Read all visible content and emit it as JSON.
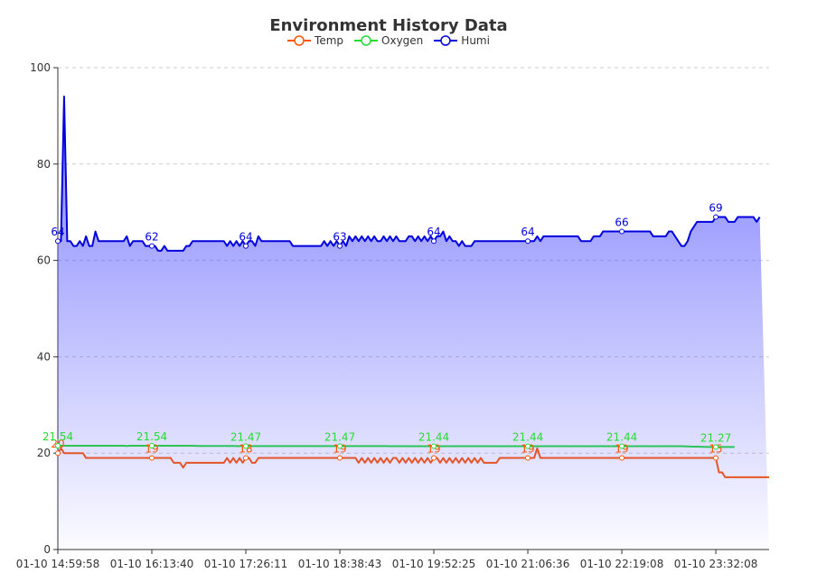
{
  "chart_data": {
    "type": "line",
    "title": "Environment History Data",
    "legend_position": "top",
    "grid": "dashed-horizontal",
    "ylim": [
      0,
      100
    ],
    "yticks": [
      0,
      20,
      40,
      60,
      80,
      100
    ],
    "x_tick_labels": [
      "01-10 14:59:58",
      "01-10 16:13:40",
      "01-10 17:26:11",
      "01-10 18:38:43",
      "01-10 19:52:25",
      "01-10 21:06:36",
      "01-10 22:19:08",
      "01-10 23:32:08"
    ],
    "series": [
      {
        "name": "Temp",
        "color": "#ff5500",
        "area": false,
        "values": [
          20,
          21,
          20,
          20,
          20,
          20,
          20,
          20,
          20,
          19,
          19,
          19,
          19,
          19,
          19,
          19,
          19,
          19,
          19,
          19,
          19,
          19,
          19,
          19,
          19,
          19,
          19,
          19,
          19,
          19,
          19,
          19,
          19,
          19,
          19,
          19,
          19,
          18,
          18,
          18,
          17,
          18,
          18,
          18,
          18,
          18,
          18,
          18,
          18,
          18,
          18,
          18,
          18,
          18,
          19,
          18,
          19,
          18,
          19,
          18,
          19,
          19,
          18,
          18,
          19,
          19,
          19,
          19,
          19,
          19,
          19,
          19,
          19,
          19,
          19,
          19,
          19,
          19,
          19,
          19,
          19,
          19,
          19,
          19,
          19,
          19,
          19,
          19,
          19,
          19,
          19,
          19,
          19,
          19,
          19,
          19,
          18,
          19,
          18,
          19,
          18,
          19,
          18,
          19,
          18,
          19,
          18,
          19,
          19,
          18,
          19,
          18,
          19,
          18,
          19,
          18,
          19,
          18,
          19,
          18,
          19,
          19,
          18,
          19,
          18,
          19,
          18,
          19,
          18,
          19,
          18,
          19,
          18,
          19,
          18,
          19,
          18,
          18,
          18,
          18,
          18,
          19,
          19,
          19,
          19,
          19,
          19,
          19,
          19,
          19,
          19,
          19,
          19,
          21,
          19,
          19,
          19,
          19,
          19,
          19,
          19,
          19,
          19,
          19,
          19,
          19,
          19,
          19,
          19,
          19,
          19,
          19,
          19,
          19,
          19,
          19,
          19,
          19,
          19,
          19,
          19,
          19,
          19,
          19,
          19,
          19,
          19,
          19,
          19,
          19,
          19,
          19,
          19,
          19,
          19,
          19,
          19,
          19,
          19,
          19,
          19,
          19,
          19,
          19,
          19,
          19,
          19,
          19,
          19,
          19,
          19,
          16,
          16,
          15,
          15,
          15,
          15,
          15,
          15,
          15,
          15,
          15,
          15,
          15,
          15,
          15,
          15,
          15
        ],
        "labels": [
          [
            0,
            "20"
          ],
          [
            30,
            "19"
          ],
          [
            60,
            "18"
          ],
          [
            90,
            "19"
          ],
          [
            120,
            "19"
          ],
          [
            150,
            "19"
          ],
          [
            180,
            "19"
          ],
          [
            210,
            "15"
          ]
        ]
      },
      {
        "name": "Oxygen",
        "color": "#22dd33",
        "area": false,
        "values": [
          21.54,
          21.54,
          21.54,
          21.54,
          21.54,
          21.54,
          21.54,
          21.54,
          21.54,
          21.54,
          21.54,
          21.54,
          21.54,
          21.54,
          21.54,
          21.54,
          21.54,
          21.54,
          21.54,
          21.54,
          21.54,
          21.54,
          21.5,
          21.54,
          21.54,
          21.54,
          21.54,
          21.54,
          21.54,
          21.54,
          21.54,
          21.54,
          21.54,
          21.54,
          21.54,
          21.54,
          21.54,
          21.54,
          21.54,
          21.54,
          21.54,
          21.54,
          21.54,
          21.54,
          21.52,
          21.5,
          21.5,
          21.5,
          21.5,
          21.5,
          21.5,
          21.5,
          21.5,
          21.48,
          21.48,
          21.48,
          21.48,
          21.47,
          21.47,
          21.47,
          21.47,
          21.47,
          21.47,
          21.47,
          21.47,
          21.47,
          21.47,
          21.47,
          21.47,
          21.47,
          21.47,
          21.47,
          21.47,
          21.47,
          21.47,
          21.47,
          21.47,
          21.47,
          21.47,
          21.47,
          21.47,
          21.47,
          21.47,
          21.47,
          21.47,
          21.47,
          21.47,
          21.47,
          21.47,
          21.47,
          21.47,
          21.47,
          21.47,
          21.47,
          21.47,
          21.47,
          21.47,
          21.47,
          21.47,
          21.47,
          21.47,
          21.46,
          21.46,
          21.46,
          21.46,
          21.46,
          21.45,
          21.45,
          21.45,
          21.45,
          21.44,
          21.44,
          21.44,
          21.44,
          21.44,
          21.44,
          21.44,
          21.44,
          21.44,
          21.44,
          21.44,
          21.44,
          21.44,
          21.44,
          21.44,
          21.44,
          21.44,
          21.44,
          21.44,
          21.44,
          21.44,
          21.44,
          21.44,
          21.44,
          21.44,
          21.44,
          21.44,
          21.44,
          21.44,
          21.44,
          21.44,
          21.44,
          21.44,
          21.44,
          21.44,
          21.44,
          21.44,
          21.44,
          21.44,
          21.44,
          21.44,
          21.44,
          21.44,
          21.44,
          21.44,
          21.44,
          21.44,
          21.44,
          21.44,
          21.44,
          21.44,
          21.44,
          21.44,
          21.44,
          21.44,
          21.44,
          21.44,
          21.44,
          21.44,
          21.44,
          21.44,
          21.44,
          21.44,
          21.44,
          21.44,
          21.44,
          21.44,
          21.44,
          21.44,
          21.44,
          21.44,
          21.44,
          21.44,
          21.44,
          21.44,
          21.44,
          21.44,
          21.44,
          21.44,
          21.44,
          21.44,
          21.44,
          21.44,
          21.44,
          21.44,
          21.44,
          21.44,
          21.44,
          21.44,
          21.44,
          21.42,
          21.4,
          21.38,
          21.36,
          21.34,
          21.32,
          21.3,
          21.29,
          21.28,
          21.28,
          21.27,
          21.27,
          21.27,
          21.27,
          21.27,
          21.27,
          21.27
        ],
        "labels": [
          [
            0,
            "21.54"
          ],
          [
            30,
            "21.54"
          ],
          [
            60,
            "21.47"
          ],
          [
            90,
            "21.47"
          ],
          [
            120,
            "21.44"
          ],
          [
            150,
            "21.44"
          ],
          [
            180,
            "21.44"
          ],
          [
            210,
            "21.27"
          ]
        ]
      },
      {
        "name": "Humi",
        "color": "#0000dd",
        "area": true,
        "values": [
          64,
          64,
          94,
          64,
          64,
          63,
          63,
          64,
          63,
          65,
          63,
          63,
          66,
          64,
          64,
          64,
          64,
          64,
          64,
          64,
          64,
          64,
          65,
          63,
          64,
          64,
          64,
          64,
          63,
          63,
          63,
          63,
          62,
          62,
          63,
          62,
          62,
          62,
          62,
          62,
          62,
          63,
          63,
          64,
          64,
          64,
          64,
          64,
          64,
          64,
          64,
          64,
          64,
          64,
          63,
          64,
          63,
          64,
          63,
          64,
          63,
          64,
          64,
          63,
          65,
          64,
          64,
          64,
          64,
          64,
          64,
          64,
          64,
          64,
          64,
          63,
          63,
          63,
          63,
          63,
          63,
          63,
          63,
          63,
          63,
          64,
          63,
          64,
          63,
          64,
          63,
          64,
          63,
          65,
          64,
          65,
          64,
          65,
          64,
          65,
          64,
          65,
          64,
          64,
          65,
          64,
          65,
          64,
          65,
          64,
          64,
          64,
          65,
          65,
          64,
          65,
          64,
          65,
          64,
          65,
          64,
          65,
          65,
          66,
          64,
          65,
          64,
          64,
          63,
          64,
          63,
          63,
          63,
          64,
          64,
          64,
          64,
          64,
          64,
          64,
          64,
          64,
          64,
          64,
          64,
          64,
          64,
          64,
          64,
          64,
          64,
          64,
          64,
          65,
          64,
          65,
          65,
          65,
          65,
          65,
          65,
          65,
          65,
          65,
          65,
          65,
          65,
          64,
          64,
          64,
          64,
          65,
          65,
          65,
          66,
          66,
          66,
          66,
          66,
          66,
          66,
          66,
          66,
          66,
          66,
          66,
          66,
          66,
          66,
          66,
          65,
          65,
          65,
          65,
          65,
          66,
          66,
          65,
          64,
          63,
          63,
          64,
          66,
          67,
          68,
          68,
          68,
          68,
          68,
          68,
          69,
          69,
          69,
          69,
          68,
          68,
          68,
          69,
          69,
          69,
          69,
          69,
          69,
          68,
          69
        ],
        "labels": [
          [
            0,
            "64"
          ],
          [
            30,
            "62"
          ],
          [
            60,
            "64"
          ],
          [
            90,
            "63"
          ],
          [
            120,
            "64"
          ],
          [
            150,
            "64"
          ],
          [
            180,
            "66"
          ],
          [
            210,
            "69"
          ]
        ]
      }
    ]
  }
}
